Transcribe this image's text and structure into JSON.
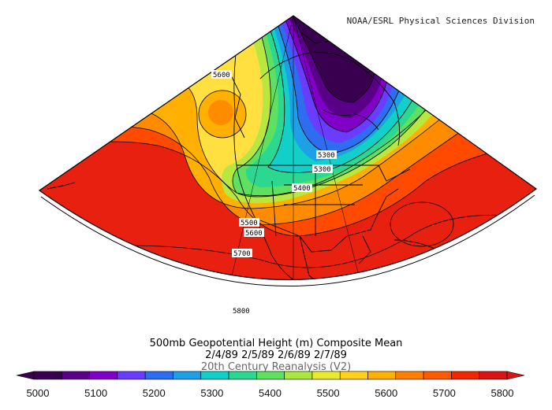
{
  "credit": "NOAA/ESRL Physical Sciences Division",
  "title": {
    "line1": "500mb Geopotential Height (m) Composite Mean",
    "line2": "2/4/89 2/5/89 2/6/89 2/7/89",
    "line3": "20th Century Reanalysis (V2)"
  },
  "contour_labels": [
    {
      "id": "5600-north",
      "text": "5600"
    },
    {
      "id": "5300-a",
      "text": "5300"
    },
    {
      "id": "5300-b",
      "text": "5300"
    },
    {
      "id": "5400",
      "text": "5400"
    },
    {
      "id": "5500",
      "text": "5500"
    },
    {
      "id": "5600-south",
      "text": "5600"
    },
    {
      "id": "5700",
      "text": "5700"
    },
    {
      "id": "5800",
      "text": "5800"
    }
  ],
  "colorbar": {
    "ticks": [
      "5000",
      "5100",
      "5200",
      "5300",
      "5400",
      "5500",
      "5600",
      "5700",
      "5800"
    ],
    "colors": [
      "#3a0050",
      "#5a0088",
      "#8000c8",
      "#6a3cff",
      "#2f6df0",
      "#1ea0e6",
      "#12d0c8",
      "#2cd890",
      "#60e060",
      "#a8e840",
      "#e8ea30",
      "#ffd020",
      "#ffb000",
      "#ff8000",
      "#ff5a00",
      "#f02800",
      "#d81414"
    ]
  },
  "colors": {
    "deep_low": "#3a004a",
    "purple": "#7a1ab0",
    "blue": "#3a7af0",
    "cyan": "#20c8e0",
    "green": "#40d060",
    "yellow": "#ffe040",
    "orange": "#ff8c00",
    "red": "#e61414"
  }
}
